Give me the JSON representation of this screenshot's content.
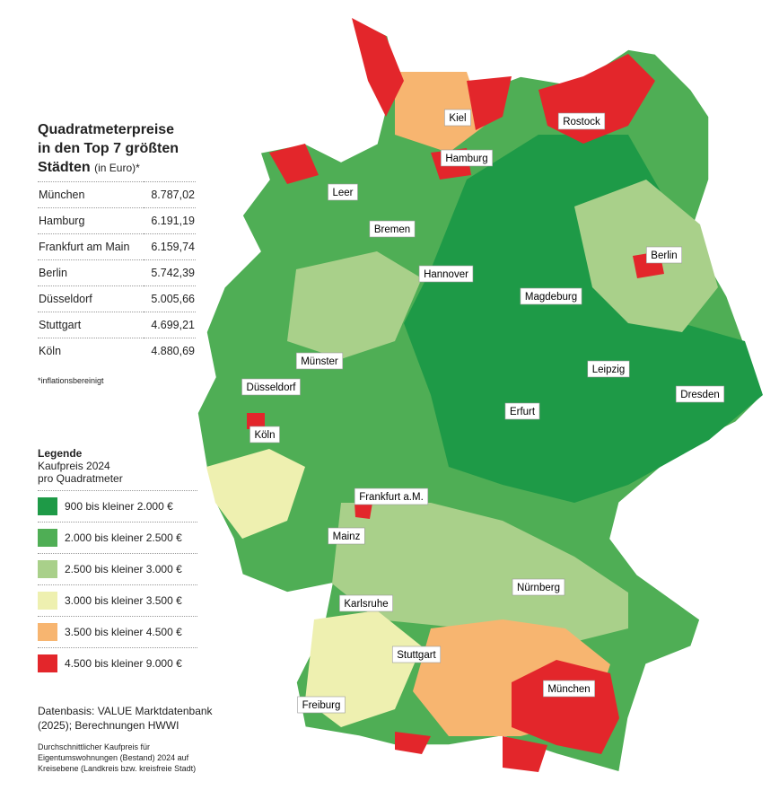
{
  "panel": {
    "title": [
      "Quadratmeterpreise",
      "in den Top 7 größten",
      "Städten"
    ],
    "title_unit": "(in Euro)*",
    "table": {
      "rows": [
        [
          "München",
          "8.787,02"
        ],
        [
          "Hamburg",
          "6.191,19"
        ],
        [
          "Frankfurt am Main",
          "6.159,74"
        ],
        [
          "Berlin",
          "5.742,39"
        ],
        [
          "Düsseldorf",
          "5.005,66"
        ],
        [
          "Stuttgart",
          "4.699,21"
        ],
        [
          "Köln",
          "4.880,69"
        ]
      ]
    },
    "footnote": "*inflationsbereinigt",
    "legend": {
      "title": "Legende",
      "subtitle": [
        "Kaufpreis 2024",
        "pro Quadratmeter"
      ],
      "items": [
        {
          "label": "900 bis kleiner 2.000 €",
          "color": "#1e9a47"
        },
        {
          "label": "2.000 bis kleiner 2.500 €",
          "color": "#4fae55"
        },
        {
          "label": "2.500 bis kleiner 3.000 €",
          "color": "#a9d08a"
        },
        {
          "label": "3.000 bis kleiner 3.500 €",
          "color": "#eef0b0"
        },
        {
          "label": "3.500 bis kleiner 4.500 €",
          "color": "#f7b570"
        },
        {
          "label": "4.500 bis kleiner 9.000 €",
          "color": "#e3262b"
        }
      ]
    },
    "source": [
      "Datenbasis: VALUE Marktdatenbank",
      "(2025); Berechnungen HWWI"
    ],
    "note": [
      "Durchschnittlicher Kaufpreis für",
      "Eigentumswohnungen (Bestand) 2024 auf",
      "Kreisebene (Landkreis bzw. kreisfreie Stadt)"
    ]
  },
  "map": {
    "cities": [
      "Kiel",
      "Rostock",
      "Hamburg",
      "Leer",
      "Bremen",
      "Berlin",
      "Hannover",
      "Magdeburg",
      "Münster",
      "Leipzig",
      "Düsseldorf",
      "Dresden",
      "Erfurt",
      "Köln",
      "Frankfurt a.M.",
      "Mainz",
      "Nürnberg",
      "Karlsruhe",
      "Stuttgart",
      "München",
      "Freiburg"
    ]
  }
}
